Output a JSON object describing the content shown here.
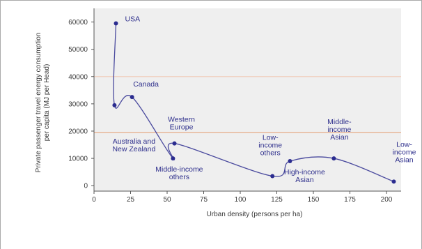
{
  "chart_data": {
    "type": "line",
    "xlabel": "Urban density (persons per ha)",
    "ylabel": [
      "Private passenger travel energy consumption",
      "per capita (MJ per Head)"
    ],
    "xlim": [
      0,
      210
    ],
    "ylim": [
      -2000,
      65000
    ],
    "xticks": [
      0,
      25,
      50,
      75,
      100,
      125,
      150,
      175,
      200
    ],
    "yticks": [
      0,
      10000,
      20000,
      30000,
      40000,
      50000,
      60000
    ],
    "grid": false,
    "reference_lines": [
      {
        "y": 40000,
        "color": "#f0d2c3"
      },
      {
        "y": 19500,
        "color": "#e8b698"
      }
    ],
    "series": [
      {
        "line_color": "#4a4a9e",
        "marker_color": "#2b2c8f",
        "points": [
          {
            "x": 15,
            "y": 59500,
            "label": [
              "USA"
            ]
          },
          {
            "x": 14,
            "y": 29500,
            "label": [
              "Australia and",
              "New Zealand"
            ]
          },
          {
            "x": 26,
            "y": 32500,
            "label": [
              "Canada"
            ]
          },
          {
            "x": 54,
            "y": 10000,
            "label": [
              "Middle-income",
              "others"
            ]
          },
          {
            "x": 55,
            "y": 15500,
            "label": [
              "Western",
              "Europe"
            ]
          },
          {
            "x": 122,
            "y": 3500,
            "label": [
              "Low-",
              "income",
              "others"
            ]
          },
          {
            "x": 134,
            "y": 9000,
            "label": [
              "High-income",
              "Asian"
            ]
          },
          {
            "x": 164,
            "y": 10000,
            "label": [
              "Middle-",
              "income",
              "Asian"
            ]
          },
          {
            "x": 205,
            "y": 1500,
            "label": [
              "Low-",
              "income",
              "Asian"
            ]
          }
        ]
      }
    ],
    "colors": {
      "plot_background": "#efefef",
      "frame": "#a9a9a9",
      "text": "#3a3a3a",
      "label": "#2e2f8c"
    }
  }
}
